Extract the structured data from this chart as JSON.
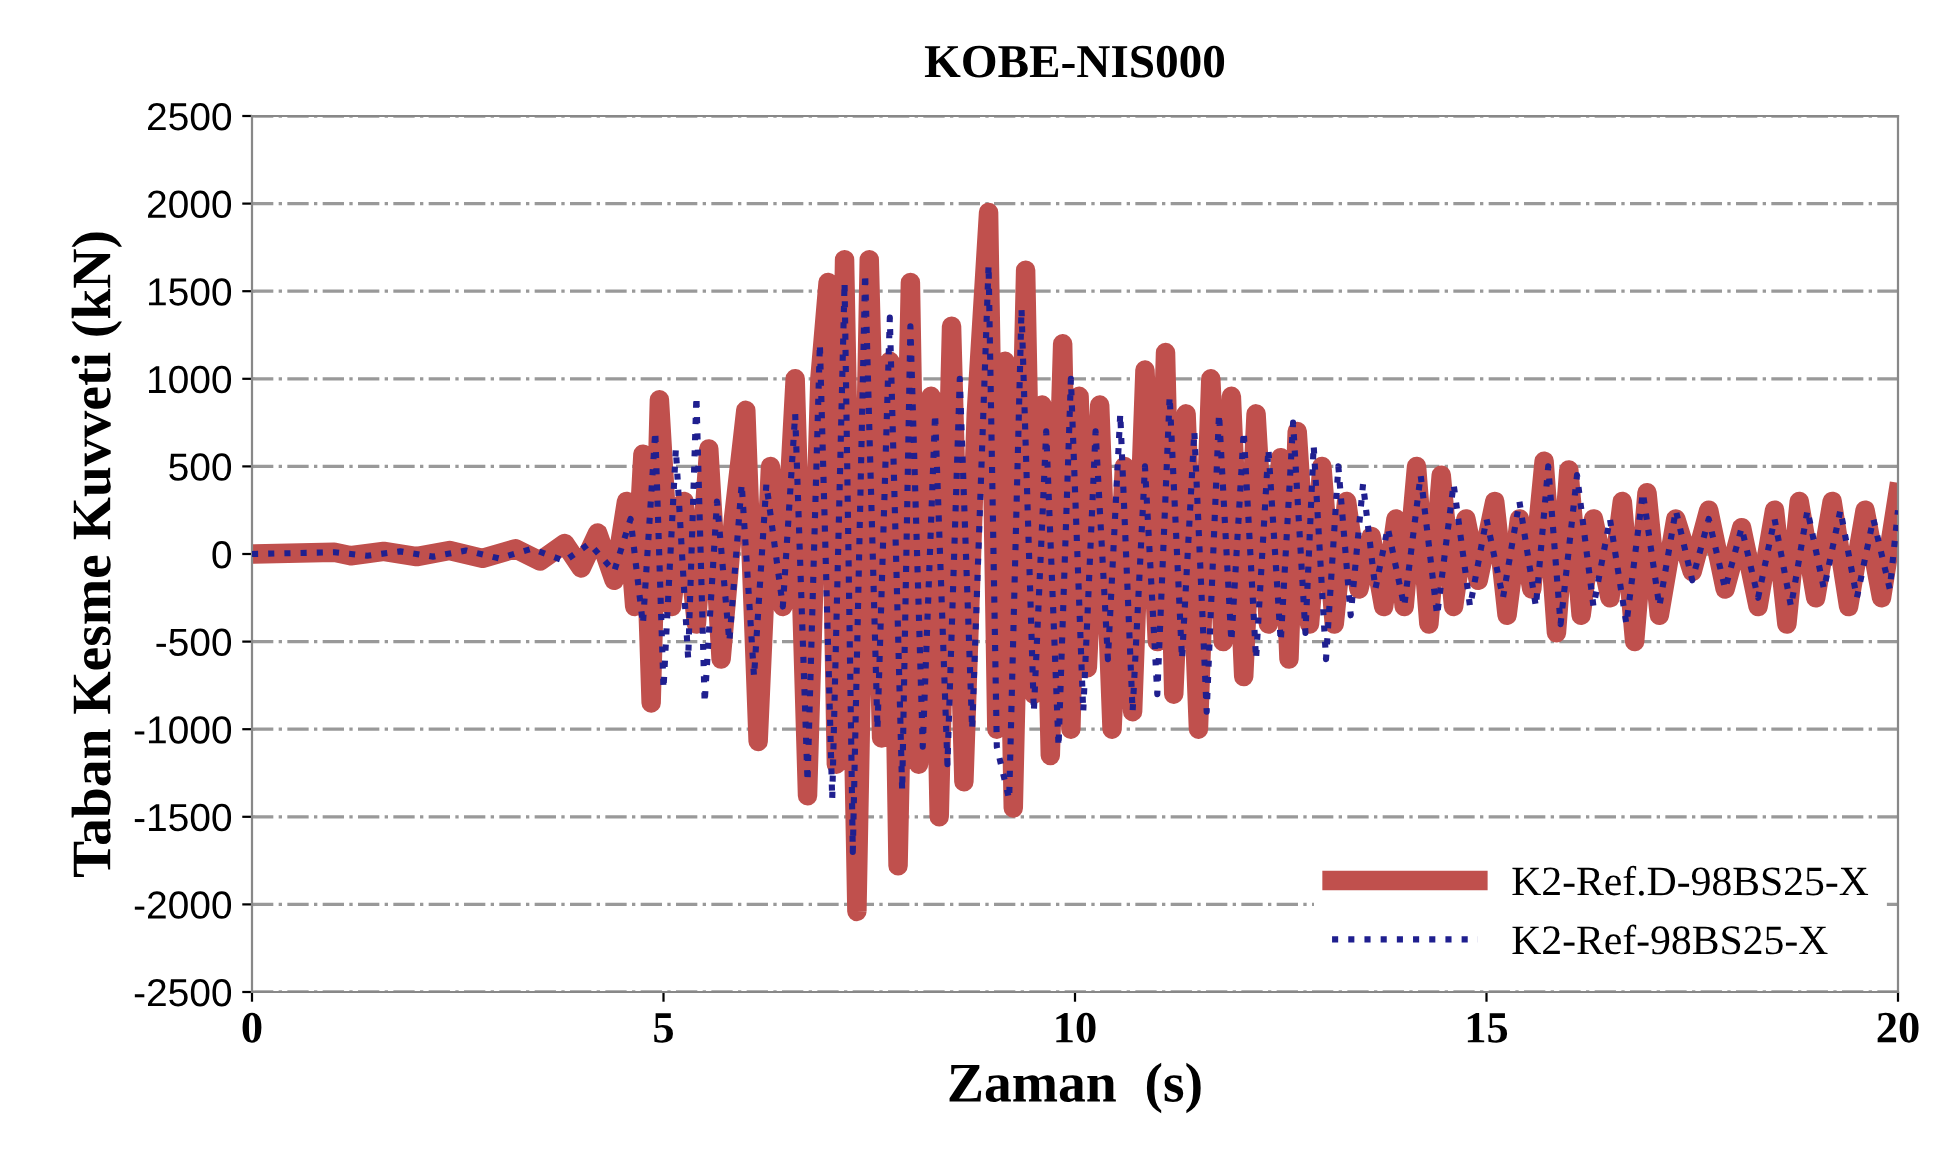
{
  "chart_data": {
    "type": "line",
    "title": "KOBE-NIS000",
    "xlabel": "Zaman  (s)",
    "ylabel": "Taban Kesme Kuvveti (kN)",
    "xlim": [
      0,
      20
    ],
    "xticks": [
      0,
      5,
      10,
      15,
      20
    ],
    "ylim": [
      -2500,
      2500
    ],
    "yticks": [
      -2500,
      -2000,
      -1500,
      -1000,
      -500,
      0,
      500,
      1000,
      1500,
      2000,
      2500
    ],
    "grid": "y",
    "legend": "bottom right",
    "marker": "none",
    "series": [
      {
        "name": "K2-Ref.D-98BS25-X",
        "color": "#c0504d",
        "line_style": "solid",
        "x": [
          0,
          1,
          1.2,
          1.6,
          2,
          2.4,
          2.8,
          3.2,
          3.5,
          3.8,
          4.0,
          4.2,
          4.4,
          4.55,
          4.65,
          4.75,
          4.85,
          4.95,
          5.1,
          5.25,
          5.4,
          5.55,
          5.7,
          5.85,
          6.0,
          6.15,
          6.3,
          6.45,
          6.6,
          6.75,
          6.9,
          7.0,
          7.1,
          7.2,
          7.35,
          7.5,
          7.65,
          7.75,
          7.85,
          8.0,
          8.1,
          8.25,
          8.35,
          8.5,
          8.65,
          8.8,
          8.95,
          9.05,
          9.15,
          9.25,
          9.4,
          9.5,
          9.6,
          9.7,
          9.85,
          9.95,
          10.05,
          10.15,
          10.3,
          10.45,
          10.6,
          10.7,
          10.85,
          11.0,
          11.1,
          11.2,
          11.35,
          11.5,
          11.65,
          11.8,
          11.9,
          12.05,
          12.2,
          12.35,
          12.5,
          12.6,
          12.7,
          12.85,
          13.0,
          13.15,
          13.3,
          13.45,
          13.6,
          13.75,
          13.9,
          14.0,
          14.15,
          14.3,
          14.45,
          14.6,
          14.75,
          14.9,
          15.1,
          15.25,
          15.4,
          15.55,
          15.7,
          15.85,
          16.0,
          16.15,
          16.3,
          16.5,
          16.65,
          16.8,
          16.95,
          17.1,
          17.3,
          17.5,
          17.7,
          17.9,
          18.1,
          18.3,
          18.5,
          18.65,
          18.8,
          19.0,
          19.2,
          19.4,
          19.6,
          19.8,
          20
        ],
        "values": [
          0,
          10,
          -10,
          15,
          -15,
          20,
          -25,
          30,
          -40,
          60,
          -80,
          120,
          -150,
          300,
          -300,
          570,
          -850,
          880,
          -300,
          300,
          -400,
          600,
          -600,
          200,
          820,
          -1070,
          500,
          -300,
          1000,
          -1380,
          1000,
          1550,
          -1200,
          1680,
          -2040,
          1680,
          -1050,
          1100,
          -1780,
          1550,
          -1200,
          900,
          -1500,
          1300,
          -1300,
          800,
          1950,
          -1000,
          1100,
          -1450,
          1620,
          -800,
          850,
          -1150,
          1200,
          -1000,
          900,
          -650,
          850,
          -1000,
          500,
          -900,
          1050,
          -500,
          1150,
          -800,
          800,
          -1000,
          1000,
          -500,
          900,
          -700,
          800,
          -400,
          550,
          -600,
          700,
          -400,
          500,
          -400,
          300,
          -200,
          100,
          -300,
          200,
          -300,
          500,
          -400,
          450,
          -300,
          200,
          -150,
          300,
          -350,
          200,
          -200,
          530,
          -450,
          480,
          -350,
          200,
          -250,
          300,
          -500,
          350,
          -350,
          200,
          -100,
          250,
          -200,
          150,
          -300,
          250,
          -400,
          300,
          -250,
          300,
          -300,
          250,
          -250,
          350
        ]
      },
      {
        "name": "K2-Ref-98BS25-X",
        "color": "#1f1f8f",
        "line_style": "dotted",
        "x": [
          0,
          1,
          1.4,
          1.8,
          2.2,
          2.6,
          3.0,
          3.4,
          3.8,
          4.1,
          4.4,
          4.6,
          4.75,
          4.9,
          5.0,
          5.15,
          5.3,
          5.4,
          5.5,
          5.65,
          5.8,
          5.95,
          6.1,
          6.25,
          6.45,
          6.6,
          6.75,
          6.9,
          7.05,
          7.2,
          7.3,
          7.45,
          7.6,
          7.75,
          7.9,
          8.0,
          8.15,
          8.3,
          8.45,
          8.6,
          8.75,
          8.95,
          9.05,
          9.2,
          9.35,
          9.5,
          9.65,
          9.8,
          9.95,
          10.1,
          10.25,
          10.4,
          10.55,
          10.7,
          10.85,
          11.0,
          11.15,
          11.3,
          11.45,
          11.6,
          11.75,
          11.9,
          12.05,
          12.2,
          12.35,
          12.5,
          12.65,
          12.8,
          12.9,
          13.05,
          13.2,
          13.35,
          13.5,
          13.65,
          13.8,
          14.0,
          14.2,
          14.4,
          14.6,
          14.8,
          15.0,
          15.2,
          15.4,
          15.6,
          15.75,
          15.9,
          16.1,
          16.3,
          16.5,
          16.7,
          16.9,
          17.1,
          17.3,
          17.5,
          17.7,
          17.9,
          18.1,
          18.3,
          18.5,
          18.7,
          18.9,
          19.1,
          19.3,
          19.5,
          19.7,
          19.9,
          20
        ],
        "values": [
          0,
          10,
          -10,
          15,
          -15,
          20,
          -25,
          30,
          -40,
          60,
          -100,
          200,
          -400,
          700,
          -770,
          600,
          -600,
          900,
          -850,
          300,
          -500,
          400,
          -700,
          400,
          -300,
          800,
          -1300,
          1200,
          -1400,
          1550,
          -1700,
          1600,
          -1000,
          1350,
          -1350,
          1300,
          -1100,
          800,
          -1200,
          1000,
          -1000,
          1650,
          -1100,
          -1400,
          1400,
          -900,
          700,
          -1100,
          1000,
          -900,
          700,
          -600,
          800,
          -900,
          500,
          -800,
          900,
          -600,
          700,
          -900,
          800,
          -500,
          700,
          -600,
          600,
          -500,
          750,
          -450,
          620,
          -600,
          500,
          -350,
          400,
          -200,
          150,
          -300,
          450,
          -350,
          400,
          -300,
          200,
          -250,
          300,
          -300,
          500,
          -400,
          450,
          -300,
          200,
          -400,
          350,
          -300,
          250,
          -150,
          200,
          -200,
          150,
          -250,
          200,
          -300,
          250,
          -200,
          250,
          -250,
          200,
          -200,
          250
        ]
      }
    ]
  }
}
